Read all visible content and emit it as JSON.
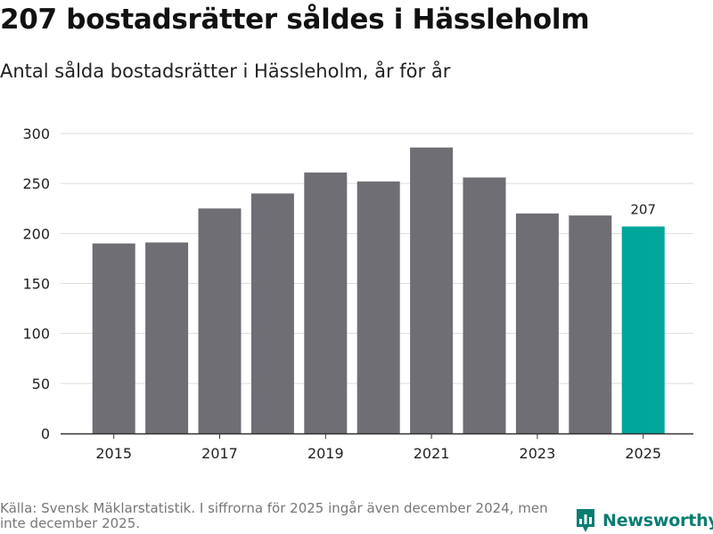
{
  "title": "207 bostadsrätter såldes i Hässleholm",
  "subtitle": "Antal sålda bostadsrätter i Hässleholm, år för år",
  "source": "Källa: Svensk Mäklarstatistik. I siffrorna för 2025 ingår även december 2024, men inte december 2025.",
  "brand": {
    "name": "Newsworthy",
    "icon": "newsworthy-logo-icon"
  },
  "colors": {
    "bar": "#6f6e74",
    "highlight": "#00a69a",
    "grid": "#dddddd",
    "axis": "#333333",
    "brand": "#0a7d73"
  },
  "chart_data": {
    "type": "bar",
    "title": "207 bostadsrätter såldes i Hässleholm",
    "subtitle": "Antal sålda bostadsrätter i Hässleholm, år för år",
    "xlabel": "",
    "ylabel": "",
    "categories": [
      "2015",
      "2016",
      "2017",
      "2018",
      "2019",
      "2020",
      "2021",
      "2022",
      "2023",
      "2024",
      "2025"
    ],
    "values": [
      190,
      191,
      225,
      240,
      261,
      252,
      286,
      256,
      220,
      218,
      207
    ],
    "x_tick_labels": [
      "2015",
      "2017",
      "2019",
      "2021",
      "2023",
      "2025"
    ],
    "y_ticks": [
      0,
      50,
      100,
      150,
      200,
      250,
      300
    ],
    "ylim": [
      0,
      300
    ],
    "grid": true,
    "highlight_index": 10,
    "data_labels": [
      {
        "category": "2025",
        "text": "207"
      }
    ]
  }
}
